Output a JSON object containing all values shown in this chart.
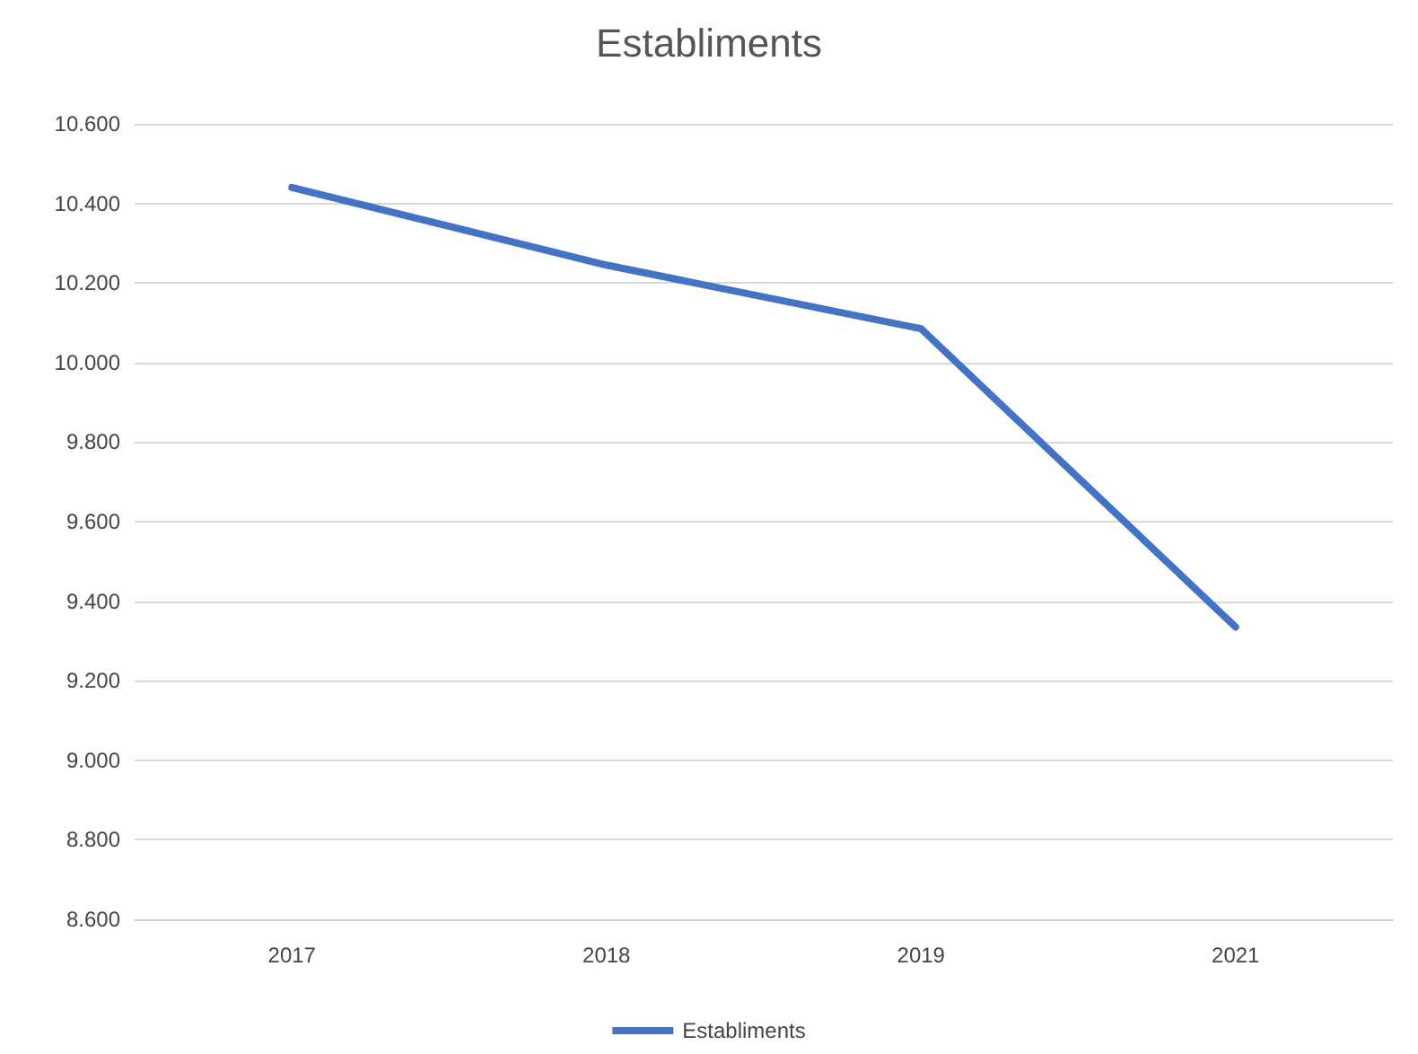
{
  "chart_data": {
    "type": "line",
    "title": "Establiments",
    "categories": [
      "2017",
      "2018",
      "2019",
      "2021"
    ],
    "series": [
      {
        "name": "Establiments",
        "color": "#4472c4",
        "values": [
          10440,
          10245,
          10085,
          9335
        ]
      }
    ],
    "ylim": [
      8600,
      10600
    ],
    "yticks": [
      {
        "value": 8600,
        "label": "8.600"
      },
      {
        "value": 8800,
        "label": "8.800"
      },
      {
        "value": 9000,
        "label": "9.000"
      },
      {
        "value": 9200,
        "label": "9.200"
      },
      {
        "value": 9400,
        "label": "9.400"
      },
      {
        "value": 9600,
        "label": "9.600"
      },
      {
        "value": 9800,
        "label": "9.800"
      },
      {
        "value": 10000,
        "label": "10.000"
      },
      {
        "value": 10200,
        "label": "10.200"
      },
      {
        "value": 10400,
        "label": "10.400"
      },
      {
        "value": 10600,
        "label": "10.600"
      }
    ],
    "grid": "y",
    "legend": "bottom",
    "marker": "none",
    "line_style": "solid"
  }
}
